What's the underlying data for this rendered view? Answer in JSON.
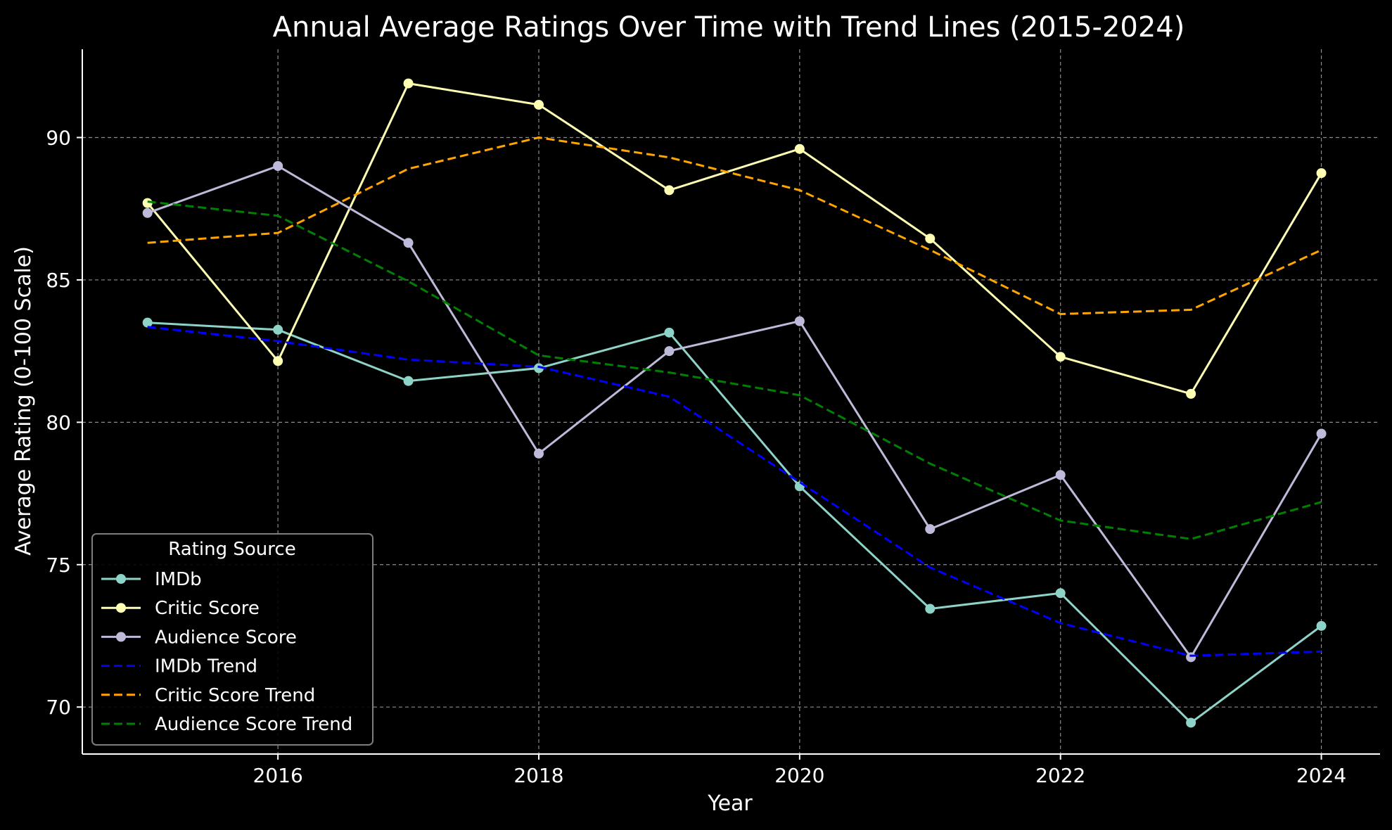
{
  "chart_data": {
    "type": "line",
    "title": "Annual Average Ratings Over Time with Trend Lines (2015-2024)",
    "xlabel": "Year",
    "ylabel": "Average Rating (0-100 Scale)",
    "x": [
      2015,
      2016,
      2017,
      2018,
      2019,
      2020,
      2021,
      2022,
      2023,
      2024
    ],
    "xlim": [
      2014.5,
      2024.45
    ],
    "ylim": [
      68.35,
      93.1
    ],
    "xticks": [
      2016,
      2018,
      2020,
      2022,
      2024
    ],
    "yticks": [
      70,
      75,
      80,
      85,
      90
    ],
    "grid": true,
    "legend": {
      "title": "Rating Source",
      "position": "lower-left"
    },
    "series": [
      {
        "name": "IMDb",
        "style": "solid",
        "marker": true,
        "color": "#8dd3c7",
        "values": [
          83.5,
          83.25,
          81.45,
          81.9,
          83.15,
          77.75,
          73.45,
          74.0,
          69.45,
          72.85
        ]
      },
      {
        "name": "Critic Score",
        "style": "solid",
        "marker": true,
        "color": "#ffffb3",
        "values": [
          87.7,
          82.15,
          91.9,
          91.15,
          88.15,
          89.6,
          86.45,
          82.3,
          81.0,
          88.75
        ]
      },
      {
        "name": "Audience Score",
        "style": "solid",
        "marker": true,
        "color": "#bebada",
        "values": [
          87.35,
          89.0,
          86.3,
          78.9,
          82.5,
          83.55,
          76.25,
          78.15,
          71.75,
          79.6
        ]
      },
      {
        "name": "IMDb Trend",
        "style": "dashed",
        "marker": false,
        "color": "#0000ff",
        "values": [
          83.35,
          82.85,
          82.2,
          81.95,
          80.9,
          77.9,
          74.9,
          72.95,
          71.8,
          71.95
        ]
      },
      {
        "name": "Critic Score Trend",
        "style": "dashed",
        "marker": false,
        "color": "#ffa500",
        "values": [
          86.3,
          86.65,
          88.9,
          90.0,
          89.3,
          88.15,
          86.05,
          83.8,
          83.95,
          86.05
        ]
      },
      {
        "name": "Audience Score Trend",
        "style": "dashed",
        "marker": false,
        "color": "#008000",
        "values": [
          87.75,
          87.25,
          84.95,
          82.35,
          81.75,
          80.95,
          78.55,
          76.55,
          75.9,
          77.2
        ]
      }
    ]
  }
}
